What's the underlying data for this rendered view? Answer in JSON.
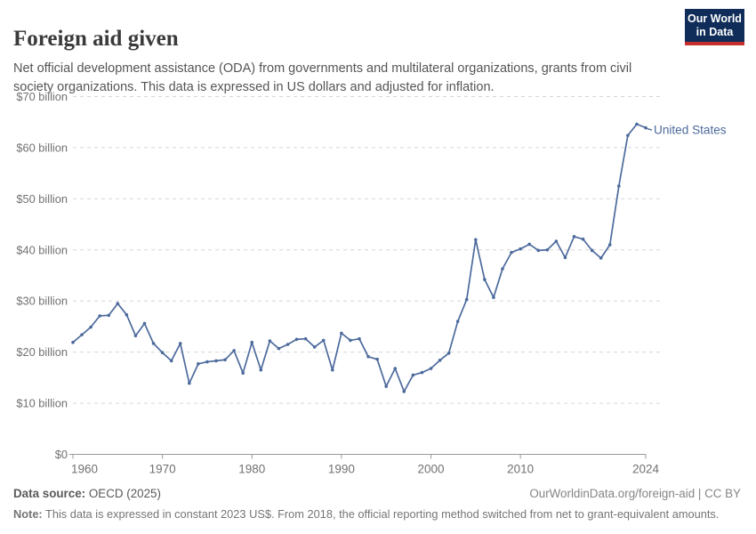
{
  "header": {
    "title": "Foreign aid given",
    "subtitle": "Net official development assistance (ODA) from governments and multilateral organizations, grants from civil society organizations. This data is expressed in US dollars and adjusted for inflation.",
    "logo": {
      "line1": "Our World",
      "line2": "in Data"
    }
  },
  "chart_data": {
    "type": "line",
    "title": "Foreign aid given",
    "xlabel": "",
    "ylabel": "",
    "ylim": [
      0,
      70
    ],
    "grid": "horizontal-dashed",
    "legend_position": "end-of-line-label",
    "yticks": [
      {
        "value": 0,
        "label": "$0"
      },
      {
        "value": 10,
        "label": "$10 billion"
      },
      {
        "value": 20,
        "label": "$20 billion"
      },
      {
        "value": 30,
        "label": "$30 billion"
      },
      {
        "value": 40,
        "label": "$40 billion"
      },
      {
        "value": 50,
        "label": "$50 billion"
      },
      {
        "value": 60,
        "label": "$60 billion"
      },
      {
        "value": 70,
        "label": "$70 billion"
      }
    ],
    "xticks": [
      {
        "value": 1960,
        "label": "1960"
      },
      {
        "value": 1970,
        "label": "1970"
      },
      {
        "value": 1980,
        "label": "1980"
      },
      {
        "value": 1990,
        "label": "1990"
      },
      {
        "value": 2000,
        "label": "2000"
      },
      {
        "value": 2010,
        "label": "2010"
      },
      {
        "value": 2024,
        "label": "2024"
      }
    ],
    "series": [
      {
        "name": "United States",
        "color": "#4C6A9C",
        "x": [
          1960,
          1961,
          1962,
          1963,
          1964,
          1965,
          1966,
          1967,
          1968,
          1969,
          1970,
          1971,
          1972,
          1973,
          1974,
          1975,
          1976,
          1977,
          1978,
          1979,
          1980,
          1981,
          1982,
          1983,
          1984,
          1985,
          1986,
          1987,
          1988,
          1989,
          1990,
          1991,
          1992,
          1993,
          1994,
          1995,
          1996,
          1997,
          1998,
          1999,
          2000,
          2001,
          2002,
          2003,
          2004,
          2005,
          2006,
          2007,
          2008,
          2009,
          2010,
          2011,
          2012,
          2013,
          2014,
          2015,
          2016,
          2017,
          2018,
          2019,
          2020,
          2021,
          2022,
          2023,
          2024
        ],
        "values": [
          21.9,
          23.4,
          24.9,
          27.1,
          27.2,
          29.5,
          27.3,
          23.2,
          25.6,
          21.7,
          19.9,
          18.3,
          21.7,
          13.9,
          17.7,
          18.1,
          18.3,
          18.5,
          20.3,
          15.9,
          21.9,
          16.5,
          22.2,
          20.7,
          21.5,
          22.5,
          22.6,
          21.0,
          22.3,
          16.5,
          23.7,
          22.3,
          22.6,
          19.1,
          18.6,
          13.3,
          16.8,
          12.3,
          15.5,
          16.0,
          16.8,
          18.4,
          19.8,
          26.0,
          30.3,
          42.0,
          34.2,
          30.7,
          36.3,
          39.5,
          40.2,
          41.1,
          39.9,
          40.0,
          41.7,
          38.5,
          42.6,
          42.1,
          39.9,
          38.4,
          41.0,
          52.5,
          62.4,
          64.6,
          63.9
        ]
      }
    ]
  },
  "colors": {
    "line": "#4C6A9C",
    "gridline": "#d6d6d6",
    "axis": "#999999",
    "tick_text": "#717171",
    "title": "#3a3a3a",
    "subtitle": "#555555",
    "logo_bg": "#102D59",
    "logo_red": "#C5302E"
  },
  "footer": {
    "datasource_label": "Data source:",
    "datasource_value": " OECD (2025)",
    "link": "OurWorldinData.org/foreign-aid | CC BY",
    "note_label": "Note:",
    "note_value": " This data is expressed in constant 2023 US$. From 2018, the official reporting method switched from net to grant-equivalent amounts."
  }
}
